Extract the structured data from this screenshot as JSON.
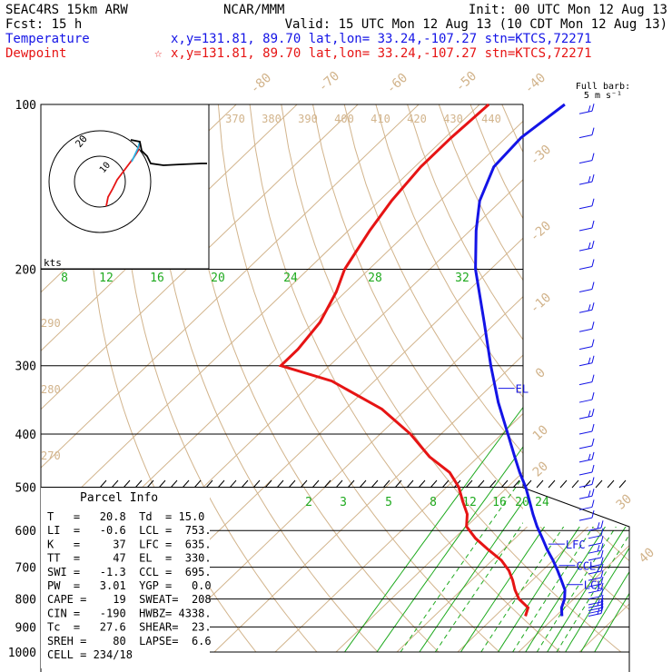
{
  "header": {
    "left_line1": "SEAC4RS 15km ARW",
    "left_line2": "Fcst:   15 h",
    "center_line1": "NCAR/MMM",
    "init": "Init: 00 UTC Mon 12 Aug 13",
    "valid": "Valid: 15 UTC Mon 12 Aug 13 (10 CDT Mon 12 Aug 13)",
    "temperature_label": "Temperature",
    "dewpoint_label": "Dewpoint",
    "temp_loc": "x,y=131.81, 89.70   lat,lon= 33.24,-107.27  stn=KTCS,72271",
    "dew_loc": "x,y=131.81, 89.70   lat,lon= 33.24,-107.27  stn=KTCS,72271",
    "dew_marker": "☆"
  },
  "colors": {
    "temperature": "#1414e6",
    "dewpoint": "#e61414",
    "mixing_ratio": "#1faa1f",
    "skew_lines": "#d2b48c",
    "text_blue": "#1414e6",
    "text_red": "#e61414"
  },
  "hodograph": {
    "units_label": "kts",
    "ring_labels": [
      "20",
      "10"
    ]
  },
  "barb_key": {
    "line1": "Full barb:",
    "line2": "5 m s⁻¹"
  },
  "parcel_info": {
    "title": "Parcel Info",
    "rows": [
      "T   =   20.8  Td  = 15.0",
      "LI  =   -0.6  LCL =  753.",
      "K   =     37  LFC =  635.",
      "TT  =     47  EL  =  330.",
      "SWI =   -1.3  CCL =  695.",
      "PW  =   3.01  YGP =   0.0",
      "CAPE =    19  SWEAT=  208",
      "CIN =   -190  HWBZ= 4338.",
      "Tc  =   27.6  SHEAR=  23.",
      "SREH =    80  LAPSE=  6.6",
      "CELL = 234/18"
    ]
  },
  "levels": [
    {
      "label": "EL",
      "p": 330
    },
    {
      "label": "LFC",
      "p": 635
    },
    {
      "label": "CCL",
      "p": 695
    },
    {
      "label": "LCL",
      "p": 753
    }
  ],
  "chart_data": {
    "type": "line",
    "title": "",
    "ylabel": "",
    "pressure_ticks": [
      "100",
      "200",
      "300",
      "400",
      "500",
      "600",
      "700",
      "800",
      "900",
      "1000"
    ],
    "ylim": [
      1000,
      100
    ],
    "isotherm_labels": [
      "-80",
      "-70",
      "-60",
      "-50",
      "-40",
      "-30",
      "-20",
      "-10",
      "0",
      "10",
      "20",
      "30",
      "40"
    ],
    "theta_labels_top": [
      "370",
      "380",
      "390",
      "400",
      "410",
      "420",
      "430",
      "440"
    ],
    "theta_labels_left": [
      "290",
      "280",
      "270"
    ],
    "mixing_ratio_labels_upper": [
      "8",
      "12",
      "16",
      "20",
      "24",
      "28",
      "32"
    ],
    "mixing_ratio_labels_lower": [
      "2",
      "3",
      "5",
      "8",
      "12",
      "16",
      "20",
      "24"
    ],
    "series": [
      {
        "name": "Temperature",
        "p": [
          860,
          830,
          800,
          770,
          740,
          710,
          680,
          650,
          620,
          590,
          560,
          530,
          500,
          470,
          440,
          400,
          350,
          300,
          250,
          200,
          170,
          150,
          130,
          115,
          100
        ],
        "t": [
          21.0,
          19.5,
          18.5,
          17.0,
          14.8,
          12.5,
          10.0,
          7.2,
          4.5,
          1.6,
          -1.2,
          -4.0,
          -7.0,
          -10.5,
          -14.0,
          -19.0,
          -26.0,
          -33.5,
          -42.0,
          -52.5,
          -59.0,
          -63.5,
          -67.0,
          -67.5,
          -66.0
        ]
      },
      {
        "name": "Dewpoint",
        "p": [
          860,
          830,
          800,
          770,
          740,
          710,
          680,
          650,
          620,
          590,
          560,
          530,
          500,
          470,
          440,
          400,
          360,
          320,
          300,
          280,
          250,
          220,
          200,
          170,
          150,
          130,
          115,
          100
        ],
        "td": [
          15.0,
          14.0,
          11.0,
          8.8,
          6.8,
          4.5,
          1.5,
          -2.5,
          -6.5,
          -10.0,
          -12.0,
          -15.0,
          -18.0,
          -22.0,
          -28.0,
          -35.0,
          -44.0,
          -57.0,
          -68.0,
          -68.0,
          -69.0,
          -71.5,
          -74.0,
          -76.5,
          -78.0,
          -79.0,
          -79.0,
          -78.5
        ]
      }
    ],
    "wind_barb_pressures": [
      860,
      850,
      840,
      830,
      820,
      800,
      780,
      760,
      740,
      720,
      700,
      680,
      660,
      640,
      620,
      600,
      575,
      550,
      525,
      500,
      475,
      450,
      425,
      400,
      375,
      350,
      325,
      300,
      280,
      260,
      240,
      220,
      200,
      185,
      170,
      155,
      140,
      128,
      115,
      104
    ]
  }
}
